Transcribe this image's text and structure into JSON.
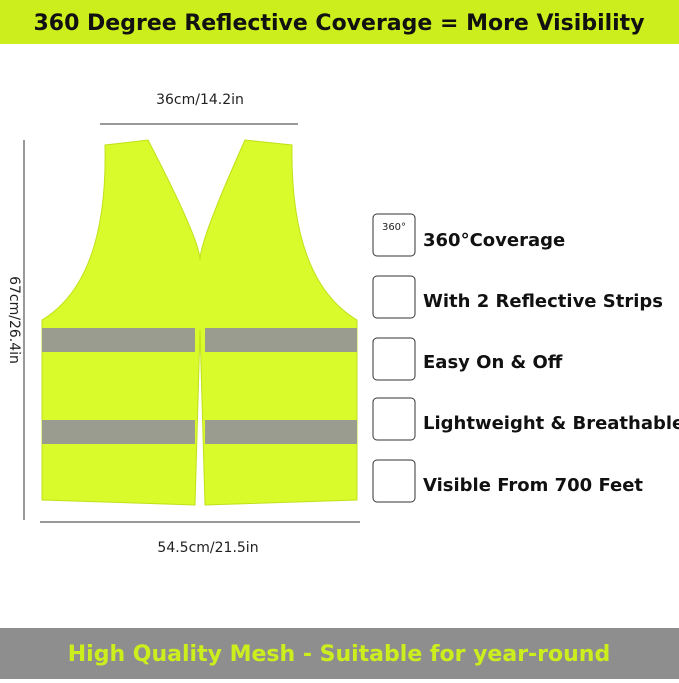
{
  "header": {
    "title": "360 Degree Reflective Coverage = More Visibility"
  },
  "dimensions": {
    "width": "36cm/14.2in",
    "height": "67cm/26.4in",
    "bottom": "54.5cm/21.5in"
  },
  "features": [
    {
      "icon": "360°",
      "label": "360°Coverage"
    },
    {
      "label": "With 2 Reflective Strips"
    },
    {
      "label": "Easy On & Off"
    },
    {
      "label": "Lightweight & Breathable"
    },
    {
      "label": "Visible From 700 Feet"
    }
  ],
  "footer": {
    "text": "High Quality Mesh - Suitable for year-round"
  }
}
